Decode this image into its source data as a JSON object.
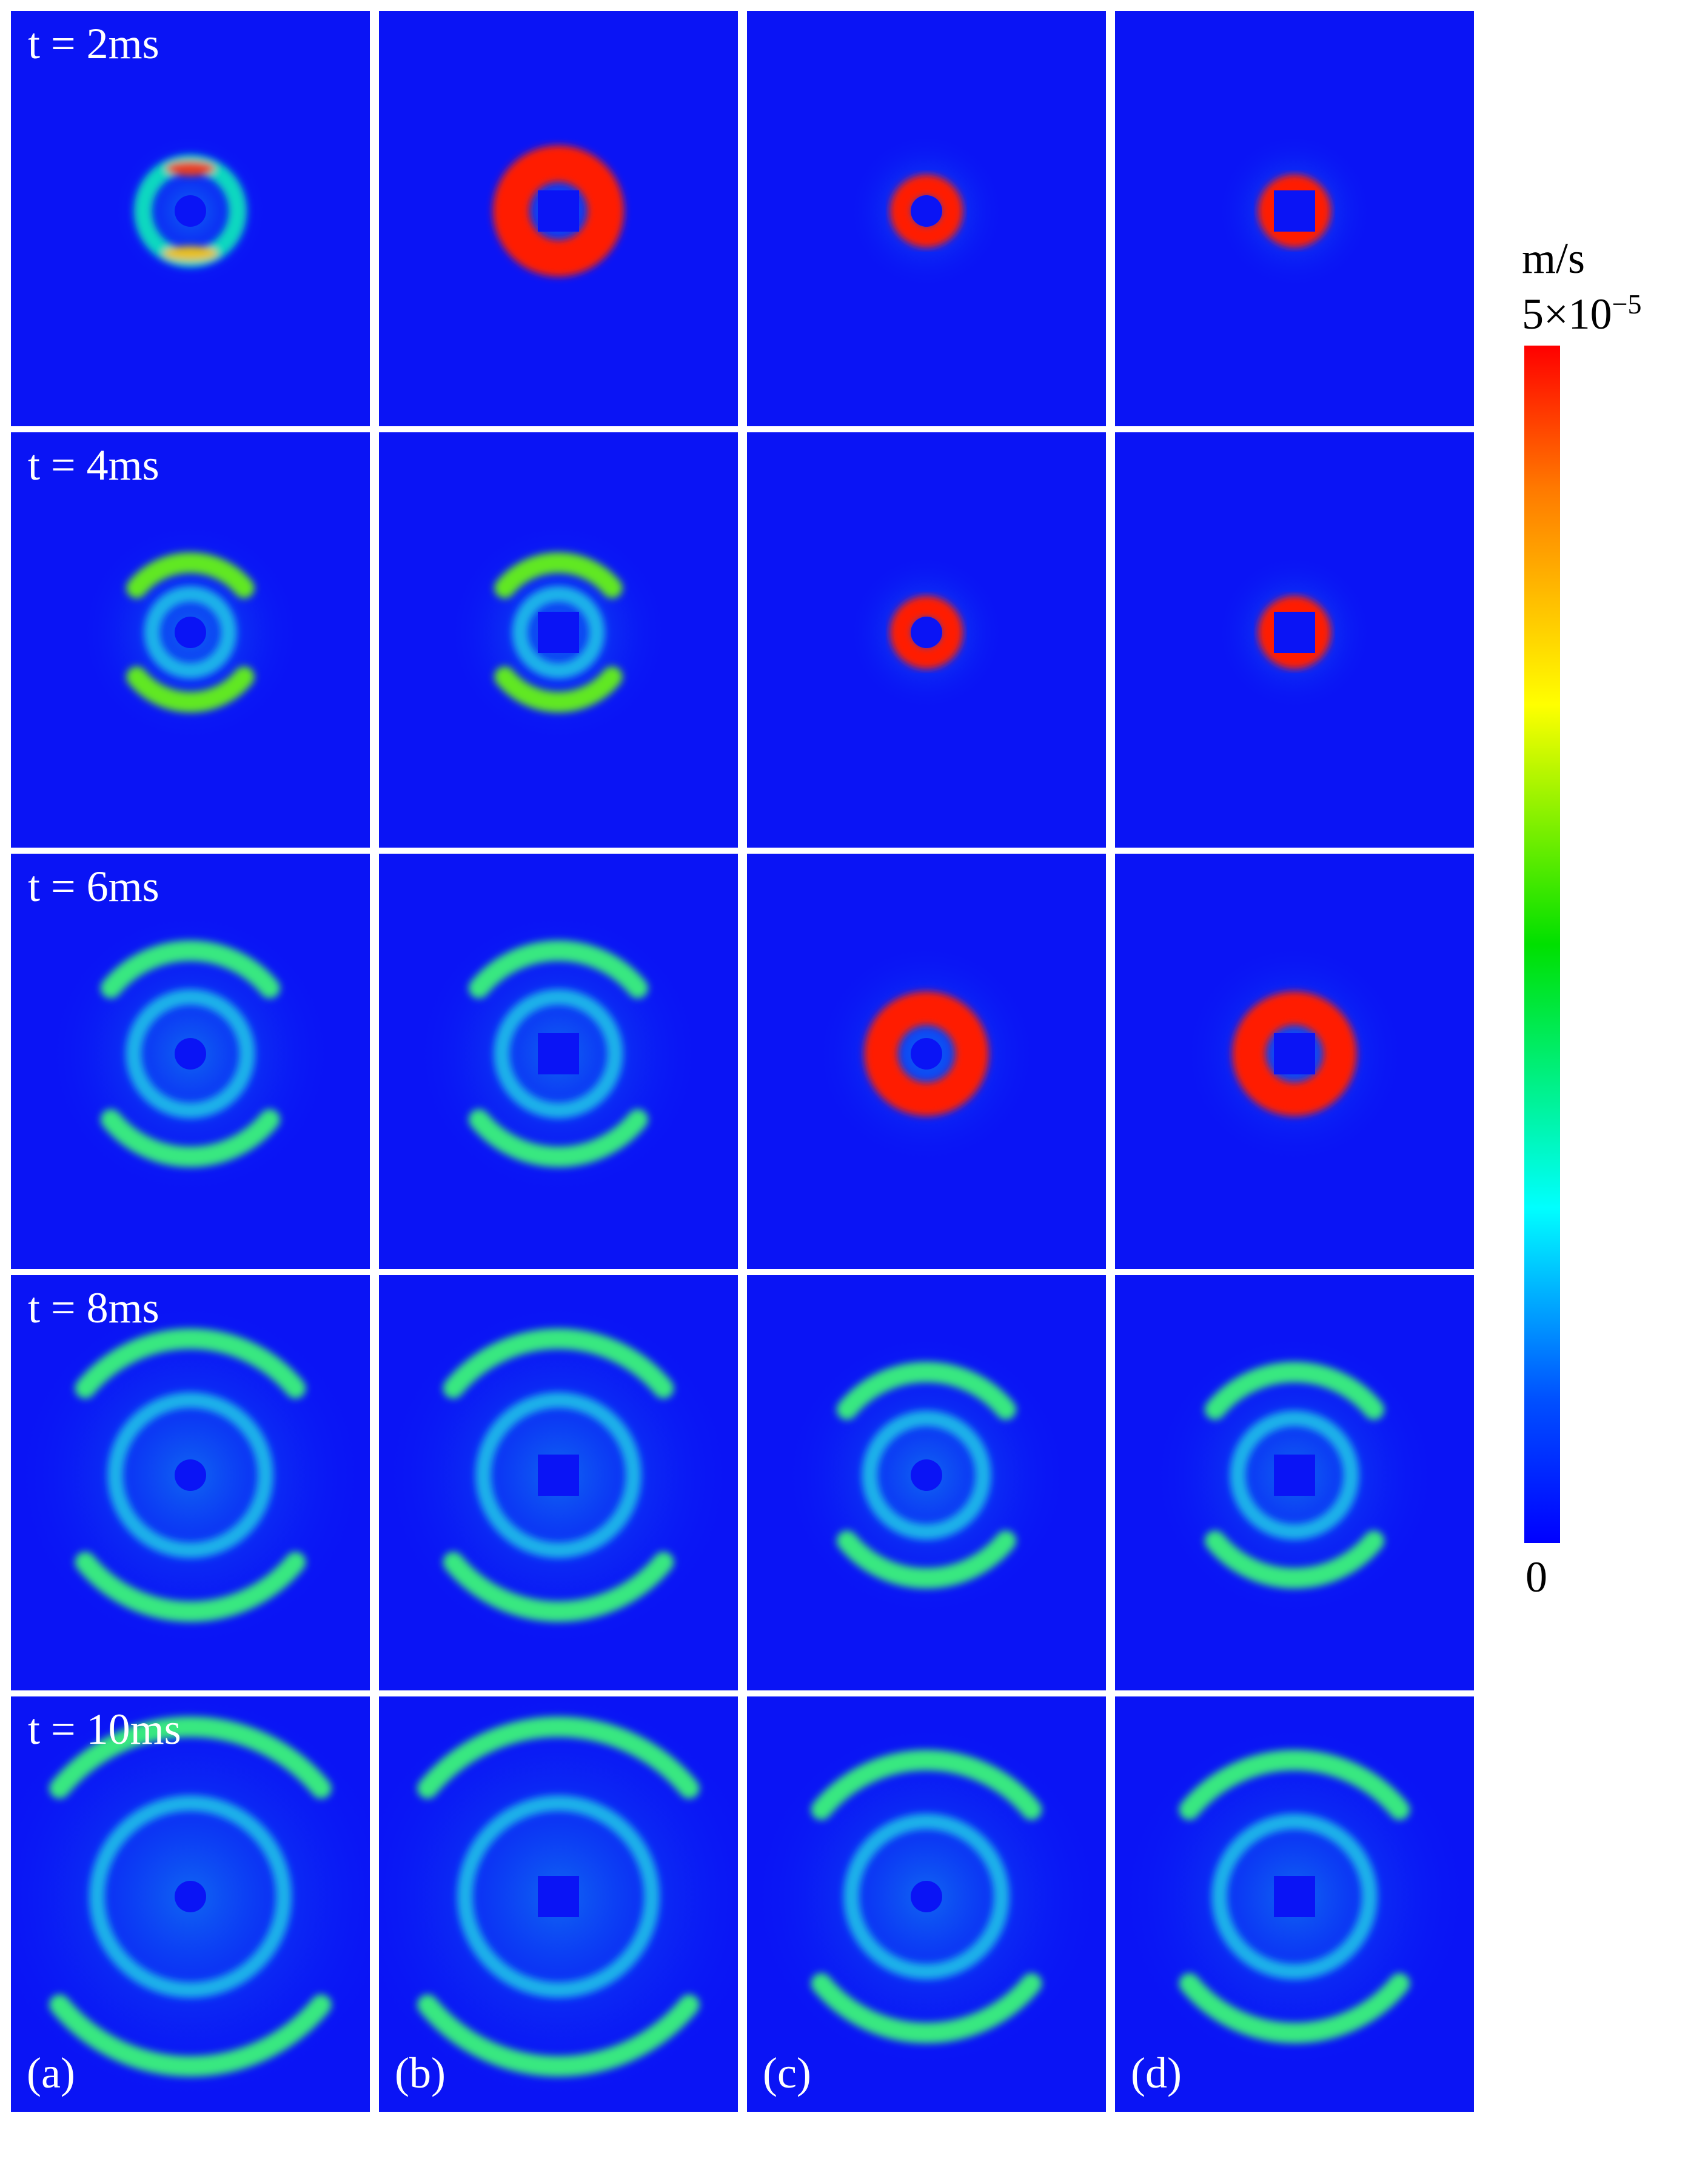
{
  "rows": [
    {
      "time_label": "t = 2ms"
    },
    {
      "time_label": "t = 4ms"
    },
    {
      "time_label": "t = 6ms"
    },
    {
      "time_label": "t = 8ms"
    },
    {
      "time_label": "t = 10ms"
    }
  ],
  "columns": [
    {
      "label": "(a)",
      "hole": "circle"
    },
    {
      "label": "(b)",
      "hole": "square"
    },
    {
      "label": "(c)",
      "hole": "circle"
    },
    {
      "label": "(d)",
      "hole": "square"
    }
  ],
  "colorbar": {
    "unit": "m/s",
    "max_label": "5×10",
    "max_exponent": "−5",
    "min_label": "0",
    "colors": [
      "#ff0000",
      "#ffff00",
      "#00e000",
      "#00ffff",
      "#0000ff"
    ]
  },
  "colors": {
    "background": "#0a14f5"
  }
}
